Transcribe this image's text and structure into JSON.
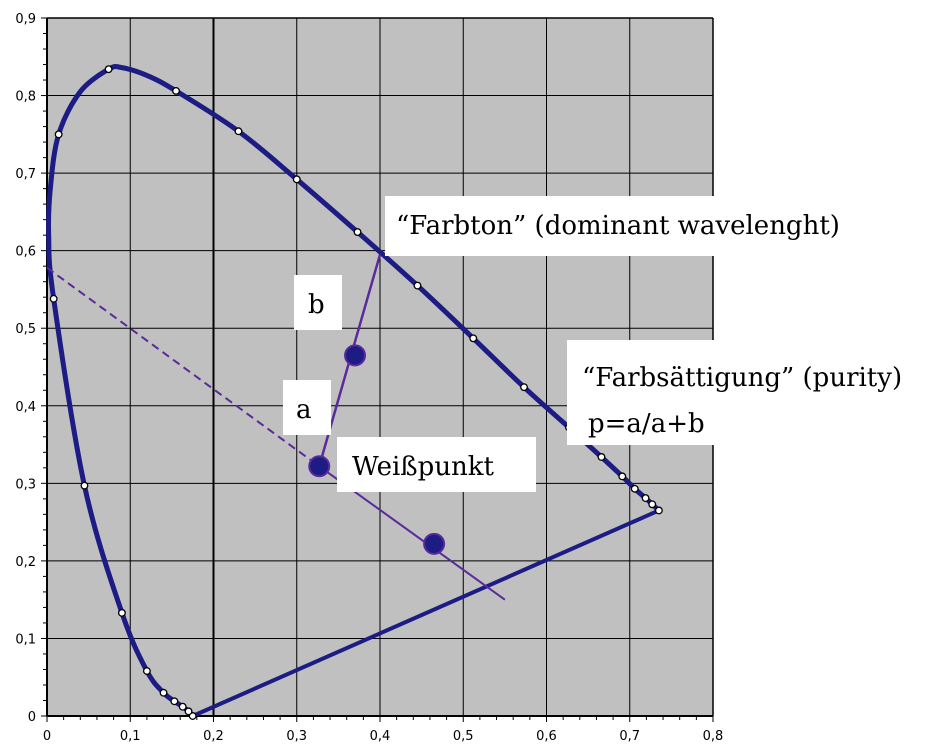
{
  "chart_data": {
    "type": "line",
    "title": "",
    "xlabel": "",
    "ylabel": "",
    "xlim": [
      0,
      0.8
    ],
    "ylim": [
      0,
      0.9
    ],
    "x_ticks": [
      "0",
      "0,1",
      "0,2",
      "0,3",
      "0,4",
      "0,5",
      "0,6",
      "0,7",
      "0,8"
    ],
    "y_ticks": [
      "0",
      "0,1",
      "0,2",
      "0,3",
      "0,4",
      "0,5",
      "0,6",
      "0,7",
      "0,8",
      "0,9"
    ],
    "grid": true,
    "colors": {
      "plot_background": "#c0c0c0",
      "grid": "#000000",
      "locus": "#1c1c84",
      "construction": "#5a2a9a",
      "annotation_text": "#3c2a8c"
    },
    "spectral_locus": [
      [
        0.175,
        0.0
      ],
      [
        0.17,
        0.006
      ],
      [
        0.163,
        0.012
      ],
      [
        0.153,
        0.019
      ],
      [
        0.14,
        0.03
      ],
      [
        0.12,
        0.058
      ],
      [
        0.09,
        0.133
      ],
      [
        0.045,
        0.297
      ],
      [
        0.008,
        0.538
      ],
      [
        0.002,
        0.62
      ],
      [
        0.004,
        0.68
      ],
      [
        0.014,
        0.75
      ],
      [
        0.04,
        0.805
      ],
      [
        0.074,
        0.834
      ],
      [
        0.09,
        0.836
      ],
      [
        0.12,
        0.826
      ],
      [
        0.155,
        0.806
      ],
      [
        0.23,
        0.754
      ],
      [
        0.3,
        0.692
      ],
      [
        0.373,
        0.624
      ],
      [
        0.445,
        0.555
      ],
      [
        0.512,
        0.487
      ],
      [
        0.573,
        0.424
      ],
      [
        0.627,
        0.372
      ],
      [
        0.666,
        0.334
      ],
      [
        0.691,
        0.309
      ],
      [
        0.706,
        0.293
      ],
      [
        0.719,
        0.281
      ],
      [
        0.727,
        0.273
      ],
      [
        0.735,
        0.265
      ]
    ],
    "purple_line": [
      [
        0.735,
        0.265
      ],
      [
        0.175,
        0.0
      ]
    ],
    "locus_markers": [
      [
        0.175,
        0.0
      ],
      [
        0.17,
        0.006
      ],
      [
        0.163,
        0.012
      ],
      [
        0.153,
        0.019
      ],
      [
        0.14,
        0.03
      ],
      [
        0.12,
        0.058
      ],
      [
        0.09,
        0.133
      ],
      [
        0.045,
        0.297
      ],
      [
        0.008,
        0.538
      ],
      [
        0.014,
        0.75
      ],
      [
        0.074,
        0.834
      ],
      [
        0.155,
        0.806
      ],
      [
        0.23,
        0.754
      ],
      [
        0.3,
        0.692
      ],
      [
        0.373,
        0.624
      ],
      [
        0.445,
        0.555
      ],
      [
        0.512,
        0.487
      ],
      [
        0.573,
        0.424
      ],
      [
        0.627,
        0.372
      ],
      [
        0.666,
        0.334
      ],
      [
        0.691,
        0.309
      ],
      [
        0.706,
        0.293
      ],
      [
        0.719,
        0.281
      ],
      [
        0.727,
        0.273
      ],
      [
        0.735,
        0.265
      ]
    ],
    "dashed_line": [
      [
        0.0,
        0.578
      ],
      [
        0.327,
        0.322
      ]
    ],
    "solid_line": [
      [
        0.327,
        0.322
      ],
      [
        0.55,
        0.15
      ]
    ],
    "hue_segment": [
      [
        0.327,
        0.322
      ],
      [
        0.4,
        0.595
      ]
    ],
    "points": [
      {
        "x": 0.327,
        "y": 0.322
      },
      {
        "x": 0.37,
        "y": 0.465
      },
      {
        "x": 0.465,
        "y": 0.222
      }
    ],
    "annotations": {
      "farbton": "“Farbton” (dominant wavelenght)",
      "farbsaettigung": "“Farbsättigung” (purity)",
      "formula": "p=a/a+b",
      "b": "b",
      "a": "a",
      "weisspunkt": "Weißpunkt"
    }
  }
}
